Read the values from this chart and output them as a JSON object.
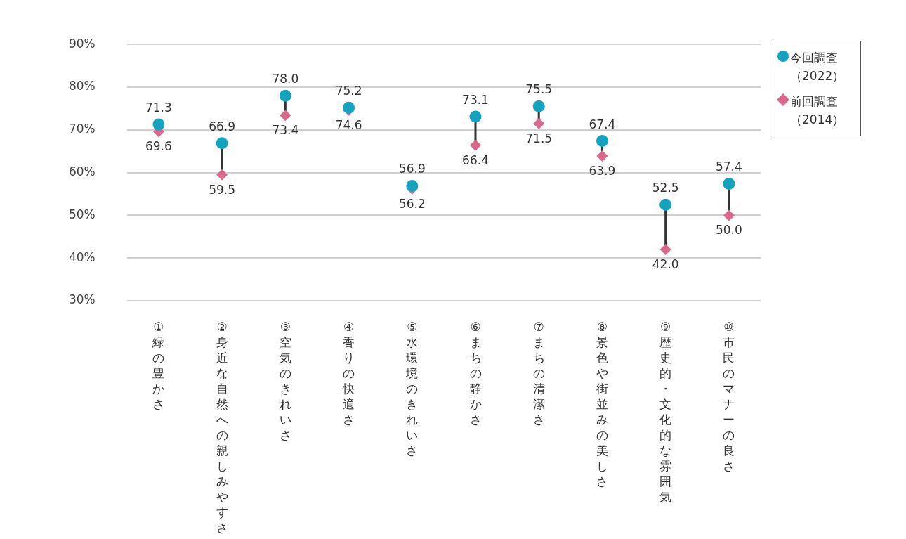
{
  "chart_data": {
    "type": "scatter",
    "categories": [
      "①緑の豊かさ",
      "②身近な自然への親しみやすさ",
      "③空気のきれいさ",
      "④香りの快適さ",
      "⑤水環境のきれいさ",
      "⑥まちの静かさ",
      "⑦まちの清潔さ",
      "⑧景色や街並みの美しさ",
      "⑨歴史的・文化的な雰囲気",
      "⑩市民のマナーの良さ"
    ],
    "series": [
      {
        "name": "今回調査（2022）",
        "color": "#13a3bf",
        "marker": "circle",
        "values": [
          71.3,
          66.9,
          78.0,
          75.2,
          56.9,
          73.1,
          75.5,
          67.4,
          52.5,
          57.4
        ],
        "value_labels": [
          "71.3",
          "66.9",
          "78.0",
          "75.2",
          "56.9",
          "73.1",
          "75.5",
          "67.4",
          "52.5",
          "57.4"
        ]
      },
      {
        "name": "前回調査（2014）",
        "color": "#d9688a",
        "marker": "diamond",
        "values": [
          69.6,
          59.5,
          73.4,
          74.6,
          56.2,
          66.4,
          71.5,
          63.9,
          42.0,
          50.0
        ],
        "value_labels": [
          "69.6",
          "59.5",
          "73.4",
          "74.6",
          "56.2",
          "66.4",
          "71.5",
          "63.9",
          "42.0",
          "50.0"
        ]
      }
    ],
    "ylim": [
      30,
      90
    ],
    "yticks": [
      {
        "value": 30,
        "label": "30%"
      },
      {
        "value": 40,
        "label": "40%"
      },
      {
        "value": 50,
        "label": "50%"
      },
      {
        "value": 60,
        "label": "60%"
      },
      {
        "value": 70,
        "label": "70%"
      },
      {
        "value": 80,
        "label": "80%"
      },
      {
        "value": 90,
        "label": "90%"
      }
    ],
    "grid": "y",
    "legend": "right"
  }
}
